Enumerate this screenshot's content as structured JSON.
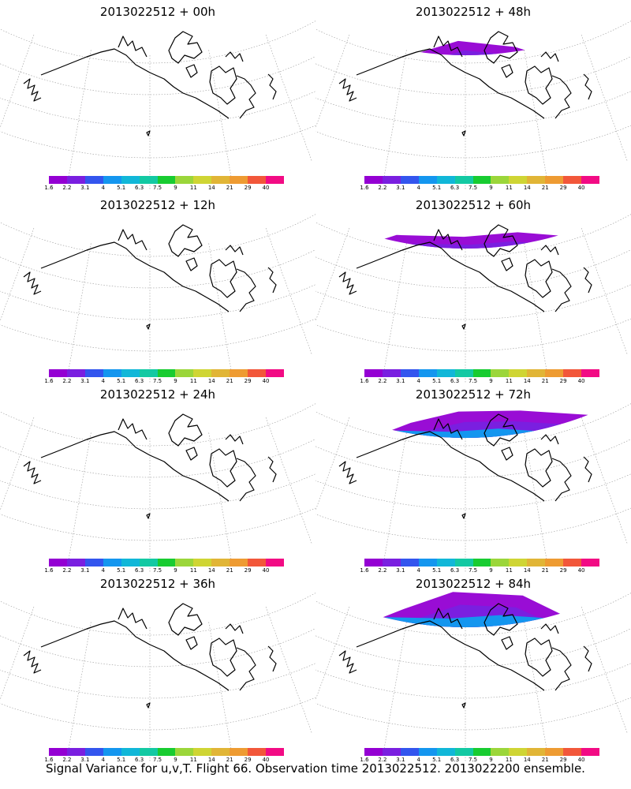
{
  "panels": [
    {
      "title": "2013022512 + 00h"
    },
    {
      "title": "2013022512 + 48h"
    },
    {
      "title": "2013022512 + 12h"
    },
    {
      "title": "2013022512 + 60h"
    },
    {
      "title": "2013022512 + 24h"
    },
    {
      "title": "2013022512 + 72h"
    },
    {
      "title": "2013022512 + 36h"
    },
    {
      "title": "2013022512 + 84h"
    }
  ],
  "colorbar": {
    "labels": [
      "1.6",
      "2.2",
      "3.1",
      "4",
      "5.1",
      "6.3",
      "7.5",
      "9",
      "11",
      "14",
      "21",
      "29",
      "40"
    ],
    "colors": [
      "#9400d3",
      "#7a1fe0",
      "#3355ee",
      "#1496ef",
      "#11b7d8",
      "#13c9a3",
      "#18cc31",
      "#9bd63a",
      "#cfd534",
      "#e1b536",
      "#ee9b32",
      "#f2573a",
      "#f20b84"
    ]
  },
  "footer": "Signal Variance for u,v,T. Flight 66. Observation time 2013022512. 2013022200 ensemble."
}
